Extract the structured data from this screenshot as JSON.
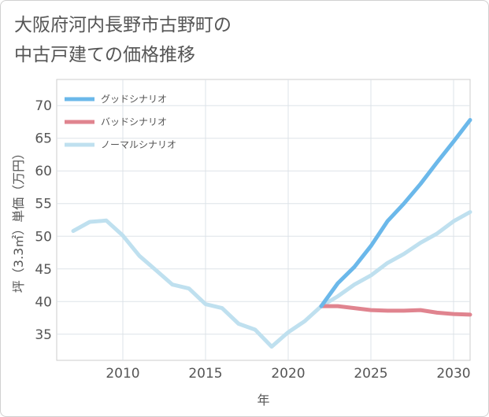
{
  "title_lines": [
    "大阪府河内長野市古野町の",
    "中古戸建ての価格推移"
  ],
  "chart_data": {
    "type": "line",
    "title": "大阪府河内長野市古野町の中古戸建ての価格推移",
    "xlabel": "年",
    "ylabel": "坪（3.3㎡）単価（万円）",
    "xlim": [
      2006,
      2031
    ],
    "ylim": [
      31,
      74
    ],
    "xticks": [
      2010,
      2015,
      2020,
      2025,
      2030
    ],
    "yticks": [
      35,
      40,
      45,
      50,
      55,
      60,
      65,
      70
    ],
    "grid": true,
    "legend_position": "top-left",
    "series": [
      {
        "name": "グッドシナリオ",
        "color": "#6bb8ea",
        "x": [
          2022,
          2023,
          2024,
          2025,
          2026,
          2027,
          2028,
          2029,
          2030,
          2031
        ],
        "y": [
          39.3,
          42.8,
          45.3,
          48.5,
          52.3,
          55.0,
          58.0,
          61.3,
          64.5,
          67.8
        ]
      },
      {
        "name": "バッドシナリオ",
        "color": "#e0848f",
        "x": [
          2022,
          2023,
          2024,
          2025,
          2026,
          2027,
          2028,
          2029,
          2030,
          2031
        ],
        "y": [
          39.3,
          39.3,
          39.0,
          38.7,
          38.6,
          38.6,
          38.7,
          38.3,
          38.1,
          38.0
        ]
      },
      {
        "name": "ノーマルシナリオ",
        "color": "#bfe0ef",
        "x": [
          2007,
          2008,
          2009,
          2010,
          2011,
          2012,
          2013,
          2014,
          2015,
          2016,
          2017,
          2018,
          2019,
          2020,
          2021,
          2022,
          2023,
          2024,
          2025,
          2026,
          2027,
          2028,
          2029,
          2030,
          2031
        ],
        "y": [
          50.8,
          52.2,
          52.4,
          50.1,
          47.0,
          44.8,
          42.6,
          42.0,
          39.6,
          39.0,
          36.6,
          35.7,
          33.1,
          35.3,
          37.0,
          39.3,
          40.8,
          42.6,
          44.0,
          45.9,
          47.3,
          49.0,
          50.4,
          52.3,
          53.7
        ]
      }
    ]
  }
}
